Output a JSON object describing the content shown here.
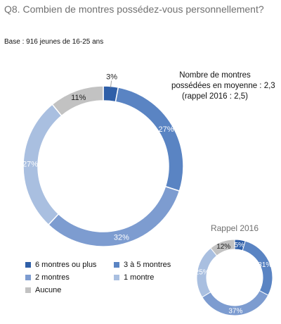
{
  "header": {
    "question": "Q8. Combien de montres possédez-vous personnellement?",
    "base": "Base : 916 jeunes de 16-25 ans"
  },
  "average_note": {
    "line1": "Nombre de montres",
    "line2": "possédées en moyenne : 2,3",
    "line3": "(rappel 2016 : 2,5)"
  },
  "colors": {
    "six_plus": "#2f5fa8",
    "three_five": "#5a84c3",
    "two": "#7d9cd0",
    "one": "#a9bfe0",
    "none": "#c2c2c2"
  },
  "chart_data": [
    {
      "type": "pie",
      "variant": "donut",
      "title": "",
      "categories": [
        "6 montres ou plus",
        "3 à 5 montres",
        "2 montres",
        "1 montre",
        "Aucune"
      ],
      "values": [
        3,
        27,
        32,
        27,
        11
      ],
      "labels": [
        "3%",
        "27%",
        "32%",
        "27%",
        "11%"
      ],
      "colors": [
        "#2f5fa8",
        "#5a84c3",
        "#7d9cd0",
        "#a9bfe0",
        "#c2c2c2"
      ],
      "legend": "bottom"
    },
    {
      "type": "pie",
      "variant": "donut",
      "title": "Rappel 2016",
      "categories": [
        "6 montres ou plus",
        "3 à 5 montres",
        "2 montres",
        "1 montre",
        "Aucune"
      ],
      "values": [
        5,
        31,
        37,
        25,
        12
      ],
      "labels": [
        "5%",
        "31%",
        "37%",
        "25%",
        "12%"
      ],
      "colors": [
        "#2f5fa8",
        "#5a84c3",
        "#7d9cd0",
        "#a9bfe0",
        "#c2c2c2"
      ]
    }
  ],
  "legend": {
    "items": [
      {
        "label": "6 montres ou plus",
        "color": "#2f5fa8"
      },
      {
        "label": "3 à 5 montres",
        "color": "#5a84c3"
      },
      {
        "label": "2 montres",
        "color": "#7d9cd0"
      },
      {
        "label": "1 montre",
        "color": "#a9bfe0"
      },
      {
        "label": "Aucune",
        "color": "#c2c2c2"
      }
    ]
  }
}
